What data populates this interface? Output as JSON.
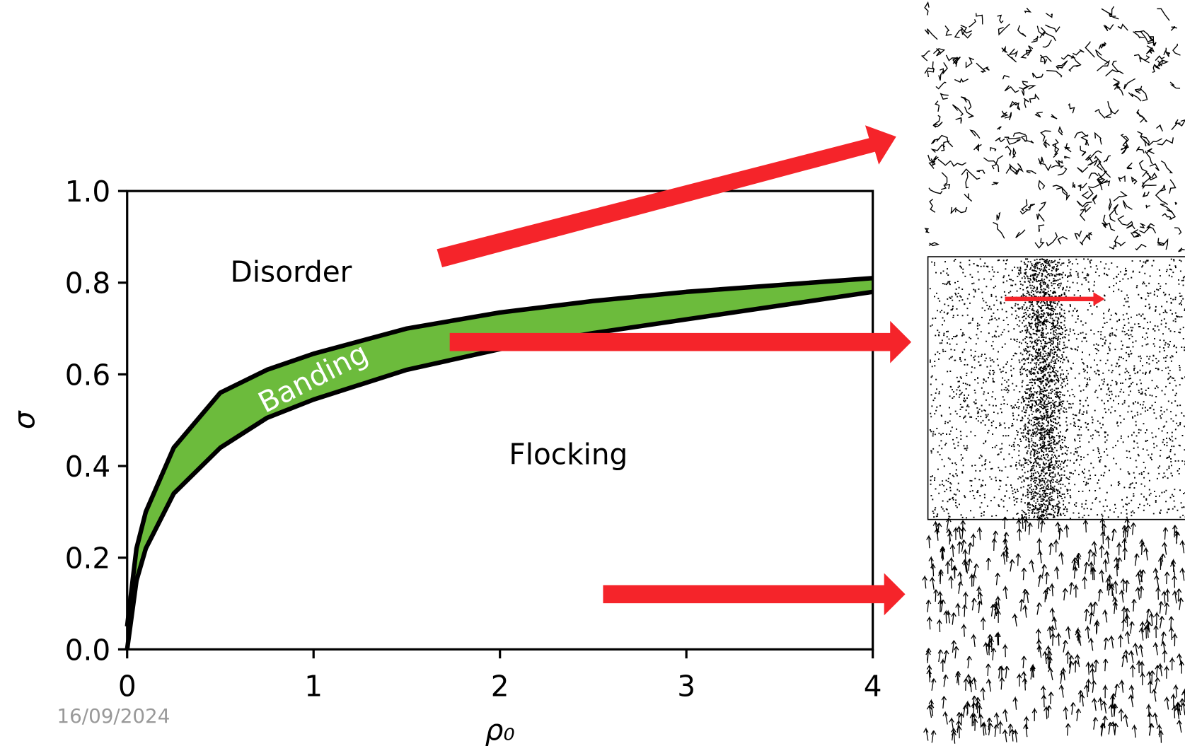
{
  "chart_data": {
    "type": "band",
    "x": [
      0,
      0.05,
      0.1,
      0.25,
      0.5,
      0.75,
      1,
      1.5,
      2,
      2.5,
      3,
      3.5,
      4
    ],
    "series": [
      {
        "color": "#000000",
        "values": [
          0.05,
          0.22,
          0.3,
          0.44,
          0.56,
          0.61,
          0.645,
          0.7,
          0.735,
          0.76,
          0.78,
          0.795,
          0.81
        ]
      },
      {
        "color": "#000000",
        "values": [
          0,
          0.15,
          0.22,
          0.34,
          0.44,
          0.505,
          0.545,
          0.61,
          0.655,
          0.69,
          0.72,
          0.75,
          0.78
        ]
      }
    ],
    "band_color": "#6cbb3c",
    "xlabel": "ρ₀",
    "ylabel": "σ",
    "xlim": [
      0,
      4
    ],
    "ylim": [
      0,
      1
    ],
    "xticks": [
      0,
      1,
      2,
      3,
      4
    ],
    "yticks": [
      {
        "value": 0,
        "label": "0.0"
      },
      {
        "value": 0.2,
        "label": "0.2"
      },
      {
        "value": 0.4,
        "label": "0.4"
      },
      {
        "value": 0.6,
        "label": "0.6"
      },
      {
        "value": 0.8,
        "label": "0.8"
      },
      {
        "value": 1,
        "label": "1.0"
      }
    ],
    "annotations": [
      "Disorder",
      "Banding",
      "Flocking"
    ],
    "grid": false
  },
  "date": "16/09/2024"
}
